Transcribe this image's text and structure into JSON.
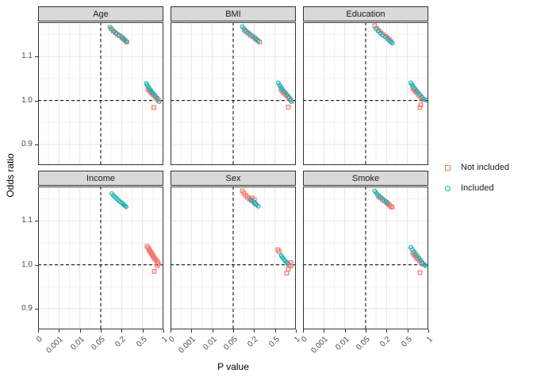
{
  "axes": {
    "x_title": "P value",
    "y_title": "Odds ratio",
    "x_tick_labels": [
      "0",
      "0.001",
      "0.01",
      "0.05",
      "0.2",
      "0.5",
      "1"
    ],
    "y_tick_labels": [
      "1.1",
      "1.0",
      "0.9"
    ]
  },
  "legend": {
    "items": [
      {
        "label": "Not included",
        "marker": "open-square",
        "color": "#F8766D"
      },
      {
        "label": "Included",
        "marker": "open-circle",
        "color": "#14B3B6"
      }
    ]
  },
  "chart_data": {
    "type": "scatter",
    "xlabel": "P value",
    "ylabel": "Odds ratio",
    "x_breaks": [
      0,
      0.001,
      0.01,
      0.05,
      0.2,
      0.5,
      1
    ],
    "y_breaks": [
      0.9,
      1.0,
      1.1
    ],
    "y_minor_breaks": [
      0.85,
      0.95,
      1.05,
      1.15
    ],
    "ylim": [
      0.853,
      1.178
    ],
    "hline_odds_ratio": 1.0,
    "vline_p_value": 0.05,
    "grid": "on",
    "legend_position": "right",
    "colors": {
      "Not included": "#F8766D",
      "Included": "#14B3B6"
    },
    "facets": [
      {
        "title": "Age",
        "series": [
          {
            "name": "Not included",
            "marker": "square",
            "points": [
              [
                0.125,
                1.163
              ],
              [
                0.14,
                1.158
              ],
              [
                0.155,
                1.154
              ],
              [
                0.17,
                1.15
              ],
              [
                0.185,
                1.147
              ],
              [
                0.205,
                1.143
              ],
              [
                0.225,
                1.14
              ],
              [
                0.25,
                1.136
              ],
              [
                0.275,
                1.133
              ],
              [
                0.63,
                1.026
              ],
              [
                0.66,
                1.023
              ],
              [
                0.69,
                1.02
              ],
              [
                0.72,
                1.017
              ],
              [
                0.75,
                1.014
              ],
              [
                0.78,
                1.011
              ],
              [
                0.81,
                1.008
              ],
              [
                0.85,
                1.004
              ],
              [
                0.88,
                1.001
              ],
              [
                0.77,
                0.984
              ]
            ]
          },
          {
            "name": "Included",
            "marker": "circle",
            "points": [
              [
                0.115,
                1.167
              ],
              [
                0.13,
                1.162
              ],
              [
                0.145,
                1.157
              ],
              [
                0.16,
                1.153
              ],
              [
                0.18,
                1.149
              ],
              [
                0.2,
                1.145
              ],
              [
                0.22,
                1.141
              ],
              [
                0.245,
                1.138
              ],
              [
                0.27,
                1.134
              ],
              [
                0.59,
                1.039
              ],
              [
                0.61,
                1.035
              ],
              [
                0.64,
                1.031
              ],
              [
                0.67,
                1.027
              ],
              [
                0.7,
                1.023
              ],
              [
                0.73,
                1.019
              ],
              [
                0.77,
                1.015
              ],
              [
                0.81,
                1.01
              ],
              [
                0.85,
                1.006
              ],
              [
                0.9,
                0.997
              ]
            ]
          }
        ]
      },
      {
        "title": "BMI",
        "series": [
          {
            "name": "Not included",
            "marker": "square",
            "points": [
              [
                0.13,
                1.16
              ],
              [
                0.145,
                1.156
              ],
              [
                0.16,
                1.152
              ],
              [
                0.175,
                1.148
              ],
              [
                0.19,
                1.145
              ],
              [
                0.21,
                1.142
              ],
              [
                0.23,
                1.139
              ],
              [
                0.255,
                1.136
              ],
              [
                0.28,
                1.133
              ],
              [
                0.64,
                1.026
              ],
              [
                0.67,
                1.022
              ],
              [
                0.7,
                1.019
              ],
              [
                0.73,
                1.016
              ],
              [
                0.76,
                1.013
              ],
              [
                0.8,
                1.009
              ],
              [
                0.84,
                1.005
              ],
              [
                0.88,
                1.001
              ],
              [
                0.82,
                0.985
              ]
            ]
          },
          {
            "name": "Included",
            "marker": "circle",
            "points": [
              [
                0.115,
                1.168
              ],
              [
                0.125,
                1.164
              ],
              [
                0.14,
                1.159
              ],
              [
                0.155,
                1.155
              ],
              [
                0.17,
                1.151
              ],
              [
                0.19,
                1.147
              ],
              [
                0.21,
                1.143
              ],
              [
                0.235,
                1.139
              ],
              [
                0.26,
                1.135
              ],
              [
                0.58,
                1.04
              ],
              [
                0.61,
                1.035
              ],
              [
                0.64,
                1.031
              ],
              [
                0.67,
                1.027
              ],
              [
                0.71,
                1.022
              ],
              [
                0.75,
                1.018
              ],
              [
                0.79,
                1.013
              ],
              [
                0.83,
                1.008
              ],
              [
                0.87,
                1.003
              ],
              [
                0.9,
                0.997
              ]
            ]
          }
        ]
      },
      {
        "title": "Education",
        "series": [
          {
            "name": "Not included",
            "marker": "square",
            "points": [
              [
                0.115,
                1.17
              ],
              [
                0.13,
                1.164
              ],
              [
                0.145,
                1.159
              ],
              [
                0.16,
                1.154
              ],
              [
                0.175,
                1.15
              ],
              [
                0.195,
                1.146
              ],
              [
                0.215,
                1.142
              ],
              [
                0.24,
                1.138
              ],
              [
                0.265,
                1.134
              ],
              [
                0.63,
                1.028
              ],
              [
                0.66,
                1.024
              ],
              [
                0.69,
                1.021
              ],
              [
                0.72,
                1.018
              ],
              [
                0.76,
                1.014
              ],
              [
                0.8,
                1.01
              ],
              [
                0.84,
                1.006
              ],
              [
                0.88,
                1.002
              ],
              [
                0.82,
                0.99
              ],
              [
                0.8,
                0.984
              ]
            ]
          },
          {
            "name": "Included",
            "marker": "circle",
            "points": [
              [
                0.125,
                1.163
              ],
              [
                0.14,
                1.158
              ],
              [
                0.155,
                1.153
              ],
              [
                0.17,
                1.149
              ],
              [
                0.19,
                1.145
              ],
              [
                0.21,
                1.141
              ],
              [
                0.235,
                1.137
              ],
              [
                0.26,
                1.133
              ],
              [
                0.285,
                1.13
              ],
              [
                0.58,
                1.04
              ],
              [
                0.61,
                1.036
              ],
              [
                0.64,
                1.032
              ],
              [
                0.68,
                1.027
              ],
              [
                0.72,
                1.022
              ],
              [
                0.76,
                1.018
              ],
              [
                0.8,
                1.013
              ],
              [
                0.85,
                1.008
              ],
              [
                0.9,
                1.003
              ],
              [
                0.95,
                1.001
              ]
            ]
          }
        ]
      },
      {
        "title": "Income",
        "series": [
          {
            "name": "Not included",
            "marker": "square",
            "points": [
              [
                0.61,
                1.042
              ],
              [
                0.64,
                1.038
              ],
              [
                0.66,
                1.034
              ],
              [
                0.68,
                1.031
              ],
              [
                0.7,
                1.028
              ],
              [
                0.72,
                1.025
              ],
              [
                0.74,
                1.022
              ],
              [
                0.76,
                1.019
              ],
              [
                0.78,
                1.016
              ],
              [
                0.8,
                1.013
              ],
              [
                0.83,
                1.01
              ],
              [
                0.86,
                1.006
              ],
              [
                0.88,
                1.002
              ],
              [
                0.85,
                0.998
              ],
              [
                0.78,
                0.985
              ]
            ]
          },
          {
            "name": "Included",
            "marker": "circle",
            "points": [
              [
                0.13,
                1.162
              ],
              [
                0.14,
                1.158
              ],
              [
                0.15,
                1.155
              ],
              [
                0.16,
                1.152
              ],
              [
                0.17,
                1.149
              ],
              [
                0.18,
                1.146
              ],
              [
                0.19,
                1.143
              ],
              [
                0.205,
                1.141
              ],
              [
                0.22,
                1.138
              ],
              [
                0.235,
                1.136
              ],
              [
                0.25,
                1.134
              ],
              [
                0.265,
                1.132
              ]
            ]
          }
        ]
      },
      {
        "title": "Sex",
        "series": [
          {
            "name": "Not included",
            "marker": "square",
            "points": [
              [
                0.115,
                1.168
              ],
              [
                0.127,
                1.163
              ],
              [
                0.14,
                1.158
              ],
              [
                0.152,
                1.154
              ],
              [
                0.165,
                1.15
              ],
              [
                0.18,
                1.146
              ],
              [
                0.185,
                1.152
              ],
              [
                0.2,
                1.142
              ],
              [
                0.205,
                1.148
              ],
              [
                0.22,
                1.138
              ],
              [
                0.57,
                1.034
              ],
              [
                0.6,
                1.03
              ],
              [
                0.8,
                1.004
              ],
              [
                0.84,
                1.0
              ],
              [
                0.88,
                1.005
              ],
              [
                0.88,
                0.997
              ],
              [
                0.82,
                0.99
              ],
              [
                0.78,
                0.981
              ]
            ]
          },
          {
            "name": "Included",
            "marker": "circle",
            "points": [
              [
                0.175,
                1.148
              ],
              [
                0.19,
                1.145
              ],
              [
                0.205,
                1.142
              ],
              [
                0.22,
                1.139
              ],
              [
                0.24,
                1.136
              ],
              [
                0.26,
                1.133
              ],
              [
                0.65,
                1.021
              ],
              [
                0.67,
                1.018
              ],
              [
                0.69,
                1.015
              ],
              [
                0.72,
                1.012
              ],
              [
                0.74,
                1.009
              ],
              [
                0.77,
                1.006
              ],
              [
                0.8,
                1.003
              ]
            ]
          }
        ]
      },
      {
        "title": "Smoke",
        "series": [
          {
            "name": "Not included",
            "marker": "square",
            "points": [
              [
                0.14,
                1.156
              ],
              [
                0.155,
                1.152
              ],
              [
                0.17,
                1.148
              ],
              [
                0.185,
                1.145
              ],
              [
                0.2,
                1.142
              ],
              [
                0.22,
                1.139
              ],
              [
                0.24,
                1.136
              ],
              [
                0.26,
                1.133
              ],
              [
                0.28,
                1.131
              ],
              [
                0.63,
                1.027
              ],
              [
                0.66,
                1.023
              ],
              [
                0.69,
                1.02
              ],
              [
                0.72,
                1.016
              ],
              [
                0.75,
                1.013
              ],
              [
                0.79,
                1.009
              ],
              [
                0.83,
                1.005
              ],
              [
                0.87,
                1.001
              ],
              [
                0.8,
                0.982
              ]
            ]
          },
          {
            "name": "Included",
            "marker": "circle",
            "points": [
              [
                0.115,
                1.168
              ],
              [
                0.125,
                1.164
              ],
              [
                0.135,
                1.16
              ],
              [
                0.15,
                1.156
              ],
              [
                0.165,
                1.152
              ],
              [
                0.18,
                1.148
              ],
              [
                0.195,
                1.144
              ],
              [
                0.21,
                1.14
              ],
              [
                0.58,
                1.04
              ],
              [
                0.62,
                1.035
              ],
              [
                0.66,
                1.03
              ],
              [
                0.7,
                1.025
              ],
              [
                0.74,
                1.02
              ],
              [
                0.78,
                1.015
              ],
              [
                0.82,
                1.01
              ],
              [
                0.86,
                1.005
              ],
              [
                0.91,
                1.0
              ],
              [
                0.93,
                0.998
              ]
            ]
          }
        ]
      }
    ]
  }
}
